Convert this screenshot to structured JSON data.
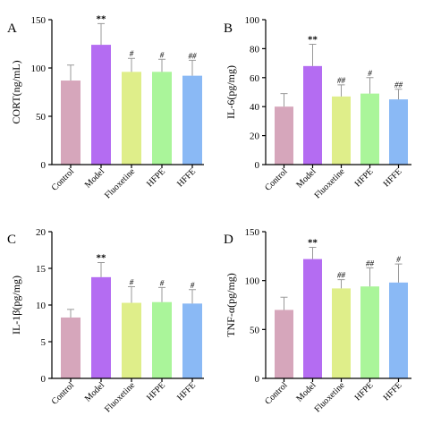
{
  "figure": {
    "categories": [
      "Control",
      "Model",
      "Fluoxetine",
      "HFPE",
      "HFFE"
    ],
    "bar_colors": [
      "#d6a6bb",
      "#b46cf2",
      "#dfee8a",
      "#aaf59a",
      "#8ab9f5"
    ]
  },
  "chart_data": [
    {
      "type": "bar",
      "panel": "A",
      "title": "",
      "xlabel": "",
      "ylabel": "CORT(ng/mL)",
      "ylim": [
        0,
        150
      ],
      "yticks": [
        0,
        50,
        100,
        150
      ],
      "categories": [
        "Control",
        "Model",
        "Fluoxetine",
        "HFPE",
        "HFFE"
      ],
      "values": [
        87,
        124,
        96,
        96,
        92
      ],
      "errors": [
        16,
        22,
        14,
        13,
        16
      ],
      "annotations": [
        "",
        "**",
        "#",
        "#",
        "##"
      ]
    },
    {
      "type": "bar",
      "panel": "B",
      "title": "",
      "xlabel": "",
      "ylabel": "IL-6(pg/mg)",
      "ylim": [
        0,
        100
      ],
      "yticks": [
        0,
        20,
        40,
        60,
        80,
        100
      ],
      "categories": [
        "Control",
        "Model",
        "Fluoxetine",
        "HFPE",
        "HFFE"
      ],
      "values": [
        40,
        68,
        47,
        49,
        45
      ],
      "errors": [
        9,
        15,
        8,
        11,
        7
      ],
      "annotations": [
        "",
        "**",
        "##",
        "#",
        "##"
      ]
    },
    {
      "type": "bar",
      "panel": "C",
      "title": "",
      "xlabel": "",
      "ylabel": "IL-1β(pg/mg)",
      "ylim": [
        0,
        20
      ],
      "yticks": [
        0,
        5,
        10,
        15,
        20
      ],
      "categories": [
        "Control",
        "Model",
        "Fluoxetine",
        "HFPE",
        "HFFE"
      ],
      "values": [
        8.3,
        13.8,
        10.3,
        10.4,
        10.2
      ],
      "errors": [
        1.1,
        2.0,
        2.2,
        2.0,
        1.9
      ],
      "annotations": [
        "",
        "**",
        "#",
        "#",
        "#"
      ]
    },
    {
      "type": "bar",
      "panel": "D",
      "title": "",
      "xlabel": "",
      "ylabel": "TNF-α(pg/mg)",
      "ylim": [
        0,
        150
      ],
      "yticks": [
        0,
        50,
        100,
        150
      ],
      "categories": [
        "Control",
        "Model",
        "Fluoxetine",
        "HFPE",
        "HFFE"
      ],
      "values": [
        70,
        122,
        92,
        94,
        98
      ],
      "errors": [
        13,
        12,
        9,
        19,
        19
      ],
      "annotations": [
        "",
        "**",
        "##",
        "##",
        "#"
      ]
    }
  ]
}
